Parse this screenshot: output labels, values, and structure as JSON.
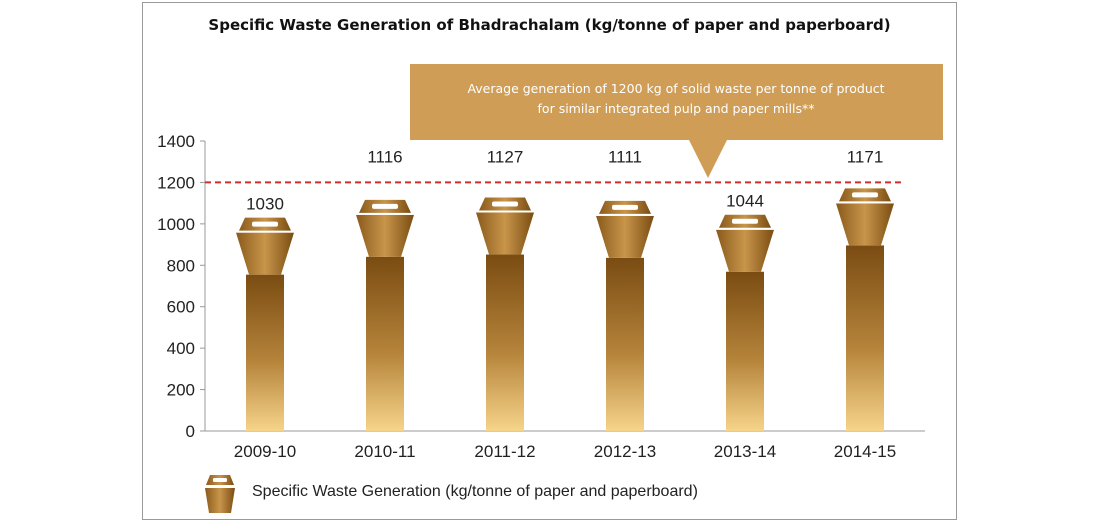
{
  "colors": {
    "bar_dark": "#7a4c12",
    "bar_light": "#f6d48a",
    "annotation_box": "#cf9d55",
    "reference_line": "#d42f2f",
    "frame": "#9a9a9a"
  },
  "chart_data": {
    "type": "bar",
    "title": "Specific Waste Generation of Bhadrachalam (kg/tonne of paper and paperboard)",
    "categories": [
      "2009-10",
      "2010-11",
      "2011-12",
      "2012-13",
      "2013-14",
      "2014-15"
    ],
    "series": [
      {
        "name": "Specific Waste Generation (kg/tonne of paper and paperboard)",
        "values": [
          1030,
          1116,
          1127,
          1111,
          1044,
          1171
        ]
      }
    ],
    "ylim": [
      0,
      1400
    ],
    "yticks": [
      0,
      200,
      400,
      600,
      800,
      1000,
      1200,
      1400
    ],
    "grid": false,
    "reference_line": {
      "value": 1200,
      "style": "dashed"
    },
    "annotation": {
      "lines": [
        "Average generation of 1200 kg of solid waste per tonne of product",
        "for similar integrated pulp and paper mills**"
      ]
    },
    "marker": "waste-bin",
    "legend_position": "bottom"
  }
}
